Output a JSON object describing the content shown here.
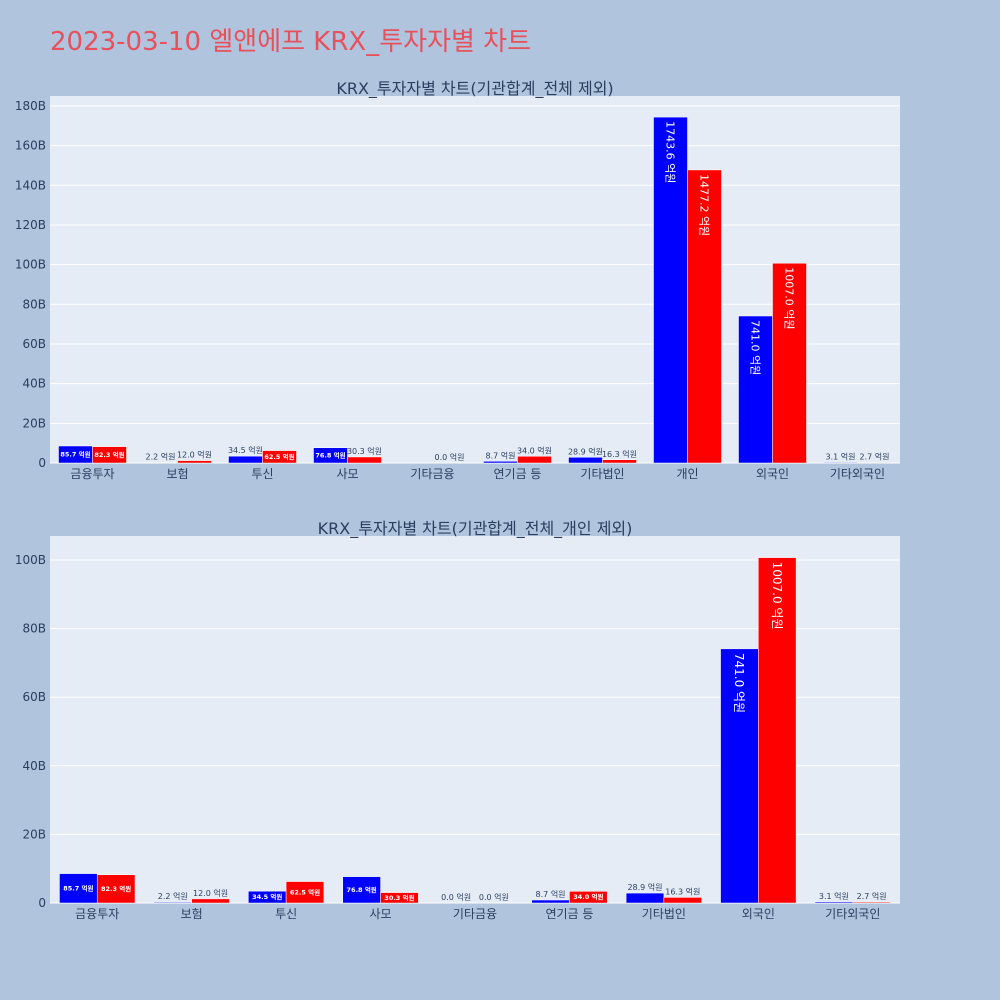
{
  "page": {
    "title": "2023-03-10 엘앤에프 KRX_투자자별 차트"
  },
  "colors": {
    "background": "#b0c4de",
    "plot_bg": "#e5ecf6",
    "grid": "#ffffff",
    "series_a": "#0000ff",
    "series_b": "#ff0000",
    "title": "#e8505b",
    "text": "#2a3f5f"
  },
  "chart_data": [
    {
      "type": "bar",
      "title": "KRX_투자자별 차트(기관합계_전체 제외)",
      "categories": [
        "금융투자",
        "보험",
        "투신",
        "사모",
        "기타금융",
        "연기금 등",
        "기타법인",
        "개인",
        "외국인",
        "기타외국인"
      ],
      "yticks": [
        "0",
        "20B",
        "40B",
        "60B",
        "80B",
        "100B",
        "120B",
        "140B",
        "160B",
        "180B"
      ],
      "ylim": [
        0,
        185
      ],
      "grid": true,
      "legend": "none",
      "series": [
        {
          "values": [
            8.57,
            0.22,
            3.45,
            7.68,
            null,
            0.87,
            2.89,
            174.36,
            74.1,
            0.31
          ],
          "labels": [
            "85.7 억원",
            "2.2 억원",
            "34.5 억원",
            "76.8 억원",
            "",
            "8.7 억원",
            "28.9 억원",
            "1743.6 억원",
            "741.0 억원",
            "3.1 억원"
          ]
        },
        {
          "values": [
            8.23,
            1.2,
            6.25,
            3.03,
            0.0,
            3.4,
            1.63,
            147.72,
            100.7,
            0.27
          ],
          "labels": [
            "82.3 억원",
            "12.0 억원",
            "62.5 억원",
            "30.3 억원",
            "0.0 억원",
            "34.0 억원",
            "16.3 억원",
            "1477.2 억원",
            "1007.0 억원",
            "2.7 억원"
          ]
        }
      ]
    },
    {
      "type": "bar",
      "title": "KRX_투자자별 차트(기관합계_전체_개인 제외)",
      "categories": [
        "금융투자",
        "보험",
        "투신",
        "사모",
        "기타금융",
        "연기금 등",
        "기타법인",
        "외국인",
        "기타외국인"
      ],
      "yticks": [
        "0",
        "20B",
        "40B",
        "60B",
        "80B",
        "100B"
      ],
      "ylim": [
        0,
        107
      ],
      "grid": true,
      "legend": "none",
      "series": [
        {
          "values": [
            8.57,
            0.22,
            3.45,
            7.68,
            0.0,
            0.87,
            2.89,
            74.1,
            0.31
          ],
          "labels": [
            "85.7 억원",
            "2.2 억원",
            "34.5 억원",
            "76.8 억원",
            "0.0 억원",
            "8.7 억원",
            "28.9 억원",
            "741.0 억원",
            "3.1 억원"
          ]
        },
        {
          "values": [
            8.23,
            1.2,
            6.25,
            3.03,
            0.0,
            3.4,
            1.63,
            100.7,
            0.27
          ],
          "labels": [
            "82.3 억원",
            "12.0 억원",
            "62.5 억원",
            "30.3 억원",
            "0.0 억원",
            "34.0 억원",
            "16.3 억원",
            "1007.0 억원",
            "2.7 억원"
          ]
        }
      ]
    }
  ]
}
